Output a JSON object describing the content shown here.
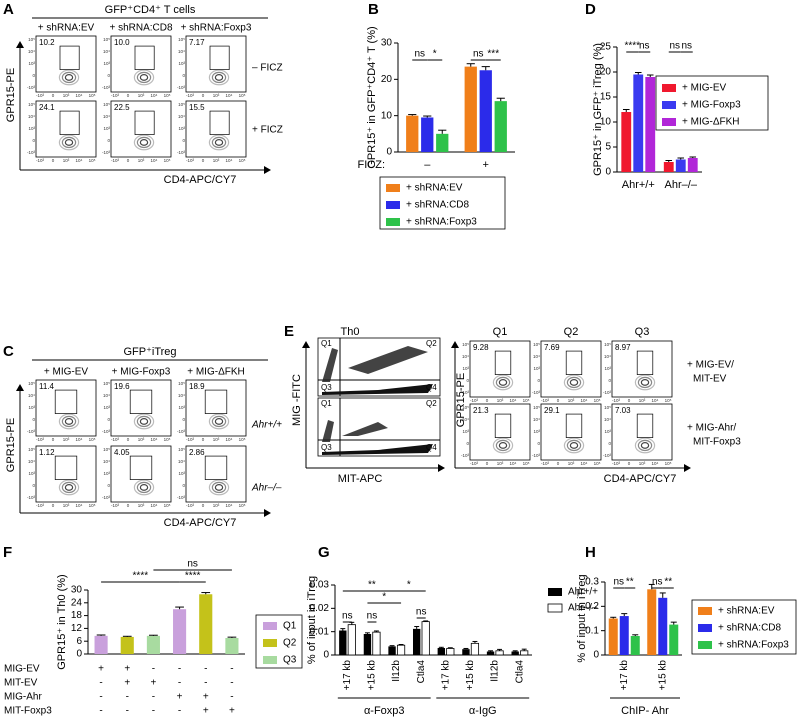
{
  "panel_letters": [
    "A",
    "B",
    "C",
    "D",
    "E",
    "F",
    "G",
    "H"
  ],
  "flow_axis_ticks": [
    "-10³",
    "0",
    "10³",
    "10⁴",
    "10⁵"
  ],
  "panel_a": {
    "header": "GFP⁺CD4⁺ T cells",
    "columns": [
      "+ shRNA:EV",
      "+ shRNA:CD8",
      "+ shRNA:Foxp3"
    ],
    "rows": [
      "– FICZ",
      "+ FICZ"
    ],
    "y_axis": "GPR15-PE",
    "x_axis": "CD4-APC/CY7",
    "percentages": [
      [
        "10.2",
        "10.0",
        "7.17"
      ],
      [
        "24.1",
        "22.5",
        "15.5"
      ]
    ]
  },
  "panel_c": {
    "header": "GFP⁺iTreg",
    "columns": [
      "+ MIG-EV",
      "+ MIG-Foxp3",
      "+ MIG-ΔFKH"
    ],
    "rows": [
      "Ahr+/+",
      "Ahr–/–"
    ],
    "y_axis": "GPR15-PE",
    "x_axis": "CD4-APC/CY7",
    "percentages": [
      [
        "11.4",
        "19.6",
        "18.9"
      ],
      [
        "1.12",
        "4.05",
        "2.86"
      ]
    ]
  },
  "panel_e": {
    "th0": {
      "title": "Th0",
      "quadrants": [
        "Q1",
        "Q2",
        "Q3",
        "Q4"
      ],
      "y_axis": "MIG -FITC",
      "x_axis": "MIT-APC"
    },
    "columns": [
      "Q1",
      "Q2",
      "Q3"
    ],
    "rows": [
      [
        "+ MIG-EV/",
        "MIT-EV"
      ],
      [
        "+ MIG-Ahr/",
        "MIT-Foxp3"
      ]
    ],
    "y_axis": "GPR15-PE",
    "x_axis": "CD4-APC/CY7",
    "percentages": [
      [
        "9.28",
        "7.69",
        "8.97"
      ],
      [
        "21.3",
        "29.1",
        "7.03"
      ]
    ]
  },
  "chart_data": [
    {
      "type": "bar",
      "y_label": "GPR15⁺ in GFP⁺CD4⁺ T (%)",
      "x_label": "FICZ:",
      "categories": [
        "–",
        "+"
      ],
      "series": [
        {
          "name": "+ shRNA:EV",
          "color": "#f07f1a",
          "values": [
            10,
            23.5
          ],
          "errors": [
            0.3,
            0.8
          ]
        },
        {
          "name": "+ shRNA:CD8",
          "color": "#2b2bea",
          "values": [
            9.5,
            22.5
          ],
          "errors": [
            0.4,
            1
          ]
        },
        {
          "name": "+ shRNA:Foxp3",
          "color": "#2ec24a",
          "values": [
            5,
            14
          ],
          "errors": [
            1,
            0.8
          ]
        }
      ],
      "ylim": [
        0,
        30
      ],
      "yticks": [
        0,
        10,
        20,
        30
      ],
      "annotations": [
        "ns",
        "*",
        "ns",
        "***"
      ]
    },
    {
      "type": "bar",
      "y_label": "GPR15⁺ in GFP⁺ iTreg (%)",
      "categories": [
        "Ahr+/+",
        "Ahr–/–"
      ],
      "series": [
        {
          "name": "+ MIG-EV",
          "color": "#f0182e",
          "values": [
            12,
            2
          ],
          "errors": [
            0.5,
            0.3
          ]
        },
        {
          "name": "+ MIG-Foxp3",
          "color": "#3a3af0",
          "values": [
            19.5,
            2.5
          ],
          "errors": [
            0.4,
            0.3
          ]
        },
        {
          "name": "+ MIG-ΔFKH",
          "color": "#b126d8",
          "values": [
            19,
            2.8
          ],
          "errors": [
            0.4,
            0.2
          ]
        }
      ],
      "ylim": [
        0,
        25
      ],
      "yticks": [
        0,
        5,
        10,
        15,
        20,
        25
      ],
      "annotations": [
        "****",
        "ns",
        "ns",
        "ns"
      ]
    },
    {
      "type": "bar",
      "y_label": "GPR15⁺ in Th0 (%)",
      "categories": [
        null,
        null,
        null,
        null,
        null,
        null
      ],
      "series": [
        {
          "name": "Q1",
          "color": "#c9a0dc",
          "values": [
            8.5,
            null,
            null,
            21,
            null,
            null
          ],
          "errors": [
            0.4,
            null,
            null,
            1,
            null,
            null
          ]
        },
        {
          "name": "Q2",
          "color": "#c4c21a",
          "values": [
            null,
            8,
            null,
            null,
            28,
            null
          ],
          "errors": [
            null,
            0.3,
            null,
            null,
            0.8,
            null
          ]
        },
        {
          "name": "Q3",
          "color": "#a8dba0",
          "values": [
            null,
            null,
            8.5,
            null,
            null,
            7.5
          ],
          "errors": [
            null,
            null,
            0.3,
            null,
            null,
            0.4
          ]
        }
      ],
      "ylim": [
        0,
        30
      ],
      "yticks": [
        0,
        6,
        12,
        18,
        24,
        30
      ],
      "annotations": [
        "ns",
        "****",
        "****"
      ],
      "conditions": [
        {
          "name": "MIG-EV",
          "signs": [
            "+",
            "+",
            "-",
            "-",
            "-",
            "-"
          ]
        },
        {
          "name": "MIT-EV",
          "signs": [
            "-",
            "+",
            "+",
            "-",
            "-",
            "-"
          ]
        },
        {
          "name": "MIG-Ahr",
          "signs": [
            "-",
            "-",
            "-",
            "+",
            "+",
            "-"
          ]
        },
        {
          "name": "MIT-Foxp3",
          "signs": [
            "-",
            "-",
            "-",
            "-",
            "+",
            "+"
          ]
        }
      ]
    },
    {
      "type": "bar",
      "y_label": "% of input in iTreg",
      "categories": [
        "+17 kb",
        "+15 kb",
        "Il12b",
        "Ctla4",
        "+17 kb",
        "+15 kb",
        "Il12b",
        "Ctla4"
      ],
      "groups": [
        "α-Foxp3",
        "α-IgG"
      ],
      "series": [
        {
          "name": "Ahr+/+",
          "color": "#000000",
          "values": [
            0.0105,
            0.009,
            0.0037,
            0.0112,
            0.003,
            0.0025,
            0.0015,
            0.0015
          ],
          "errors": [
            0.0008,
            0.0005,
            0.0003,
            0.001,
            0.0003,
            0.0003,
            0.0003,
            0.0003
          ]
        },
        {
          "name": "Ahr–/–",
          "color": "#ffffff",
          "values": [
            0.013,
            0.0098,
            0.0042,
            0.0143,
            0.0028,
            0.005,
            0.0018,
            0.0018
          ],
          "errors": [
            0.001,
            0.0005,
            0.0003,
            0.0003,
            0.0003,
            0.0008,
            0.0006,
            0.0007
          ]
        }
      ],
      "ylim": [
        0,
        0.03
      ],
      "yticks": [
        0,
        0.01,
        0.02,
        0.03
      ],
      "annotations": [
        "**",
        "*",
        "*",
        "ns",
        "ns",
        "ns"
      ]
    },
    {
      "type": "bar",
      "y_label": "% of input in iTreg",
      "x_label": "ChIP- Ahr",
      "categories": [
        "+17 kb",
        "+15 kb"
      ],
      "series": [
        {
          "name": "+ shRNA:EV",
          "color": "#f07f1a",
          "values": [
            0.15,
            0.27
          ],
          "errors": [
            0.005,
            0.02
          ]
        },
        {
          "name": "+ shRNA:CD8",
          "color": "#2b2bea",
          "values": [
            0.16,
            0.235
          ],
          "errors": [
            0.01,
            0.02
          ]
        },
        {
          "name": "+ shRNA:Foxp3",
          "color": "#2ec24a",
          "values": [
            0.078,
            0.125
          ],
          "errors": [
            0.005,
            0.01
          ]
        }
      ],
      "ylim": [
        0,
        0.3
      ],
      "yticks": [
        0,
        0.1,
        0.2,
        0.3
      ],
      "annotations": [
        "ns",
        "**",
        "ns",
        "**"
      ]
    }
  ]
}
